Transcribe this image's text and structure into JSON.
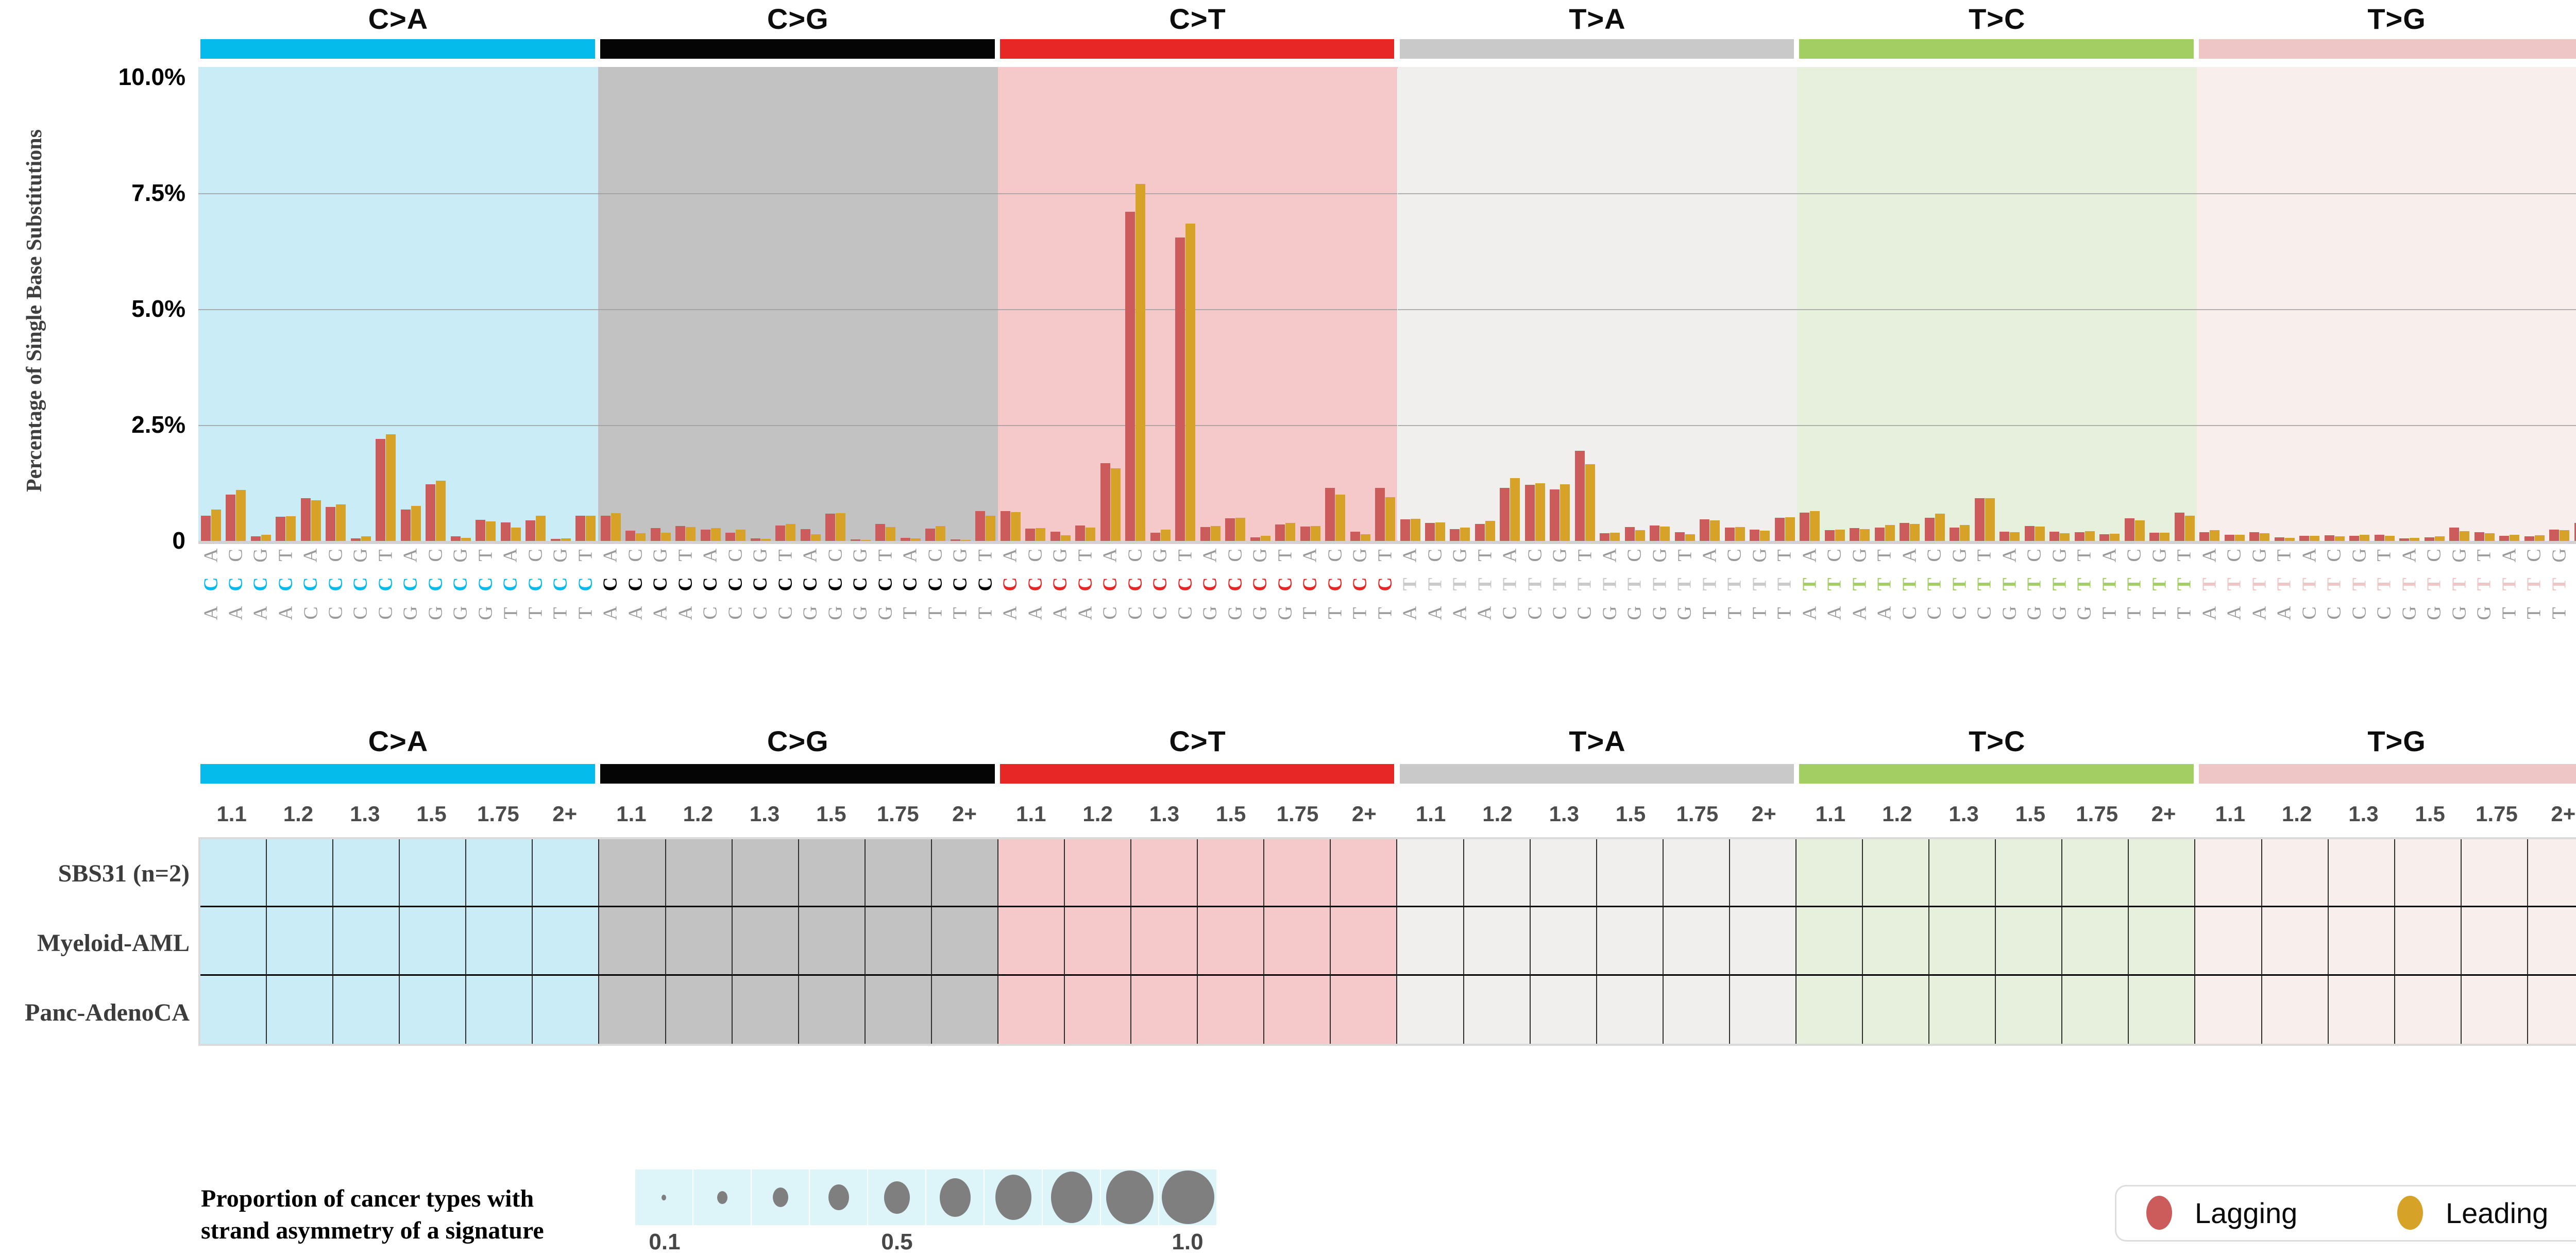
{
  "page": {
    "signature_title": "SBS31"
  },
  "axes": {
    "ylabel": "Percentage of Single Base Substitutions",
    "ytick_labels": [
      "10.0%",
      "7.5%",
      "5.0%",
      "2.5%",
      "0"
    ],
    "ytick_values": [
      10.0,
      7.5,
      5.0,
      2.5,
      0
    ]
  },
  "top_legend": {
    "items": [
      {
        "label": "Lagging Strand",
        "color": "#CC5B5C"
      },
      {
        "label": "Leading Strand",
        "color": "#D7A228"
      }
    ]
  },
  "colors": {
    "lagging": "#CC5B5C",
    "leading": "#D7A228",
    "gridline": "#9a9a9a",
    "bubble_dot": "#7f7f7f",
    "bubble_bg": "#ddf4f9"
  },
  "chart_data": {
    "type": "bar",
    "title": "SBS31",
    "ylabel": "Percentage of Single Base Substitutions",
    "ylim": [
      0,
      10
    ],
    "grid": true,
    "legend_position": "upper right",
    "series_names": [
      "Lagging Strand",
      "Leading Strand"
    ],
    "groups": [
      {
        "substitution": "C>A",
        "color": "#04BBEC",
        "tint": "#C9ECF6",
        "mid_letter_color": "#04BBEC",
        "bars": [
          {
            "context": "ACA",
            "lagging": 0.55,
            "leading": 0.68
          },
          {
            "context": "ACC",
            "lagging": 1.0,
            "leading": 1.1
          },
          {
            "context": "ACG",
            "lagging": 0.1,
            "leading": 0.13
          },
          {
            "context": "ACT",
            "lagging": 0.52,
            "leading": 0.53
          },
          {
            "context": "CCA",
            "lagging": 0.92,
            "leading": 0.88
          },
          {
            "context": "CCC",
            "lagging": 0.73,
            "leading": 0.79
          },
          {
            "context": "CCG",
            "lagging": 0.06,
            "leading": 0.1
          },
          {
            "context": "CCT",
            "lagging": 2.2,
            "leading": 2.3
          },
          {
            "context": "GCA",
            "lagging": 0.68,
            "leading": 0.76
          },
          {
            "context": "GCC",
            "lagging": 1.22,
            "leading": 1.3
          },
          {
            "context": "GCG",
            "lagging": 0.1,
            "leading": 0.07
          },
          {
            "context": "GCT",
            "lagging": 0.46,
            "leading": 0.42
          },
          {
            "context": "TCA",
            "lagging": 0.4,
            "leading": 0.29
          },
          {
            "context": "TCC",
            "lagging": 0.45,
            "leading": 0.55
          },
          {
            "context": "TCG",
            "lagging": 0.05,
            "leading": 0.06
          },
          {
            "context": "TCT",
            "lagging": 0.55,
            "leading": 0.54
          }
        ]
      },
      {
        "substitution": "C>G",
        "color": "#050505",
        "tint": "#C2C2C2",
        "mid_letter_color": "#050505",
        "bars": [
          {
            "context": "ACA",
            "lagging": 0.55,
            "leading": 0.6
          },
          {
            "context": "ACC",
            "lagging": 0.22,
            "leading": 0.17
          },
          {
            "context": "ACG",
            "lagging": 0.28,
            "leading": 0.18
          },
          {
            "context": "ACT",
            "lagging": 0.32,
            "leading": 0.3
          },
          {
            "context": "CCA",
            "lagging": 0.25,
            "leading": 0.28
          },
          {
            "context": "CCC",
            "lagging": 0.18,
            "leading": 0.24
          },
          {
            "context": "CCG",
            "lagging": 0.06,
            "leading": 0.05
          },
          {
            "context": "CCT",
            "lagging": 0.33,
            "leading": 0.37
          },
          {
            "context": "GCA",
            "lagging": 0.26,
            "leading": 0.14
          },
          {
            "context": "GCC",
            "lagging": 0.59,
            "leading": 0.6
          },
          {
            "context": "GCG",
            "lagging": 0.03,
            "leading": 0.02
          },
          {
            "context": "GCT",
            "lagging": 0.37,
            "leading": 0.3
          },
          {
            "context": "TCA",
            "lagging": 0.07,
            "leading": 0.06
          },
          {
            "context": "TCC",
            "lagging": 0.27,
            "leading": 0.32
          },
          {
            "context": "TCG",
            "lagging": 0.03,
            "leading": 0.02
          },
          {
            "context": "TCT",
            "lagging": 0.64,
            "leading": 0.54
          }
        ]
      },
      {
        "substitution": "C>T",
        "color": "#E62725",
        "tint": "#F5C9C9",
        "mid_letter_color": "#E62725",
        "bars": [
          {
            "context": "ACA",
            "lagging": 0.64,
            "leading": 0.62
          },
          {
            "context": "ACC",
            "lagging": 0.27,
            "leading": 0.28
          },
          {
            "context": "ACG",
            "lagging": 0.2,
            "leading": 0.12
          },
          {
            "context": "ACT",
            "lagging": 0.33,
            "leading": 0.29
          },
          {
            "context": "CCA",
            "lagging": 1.68,
            "leading": 1.57
          },
          {
            "context": "CCC",
            "lagging": 7.1,
            "leading": 7.7
          },
          {
            "context": "CCG",
            "lagging": 0.18,
            "leading": 0.24
          },
          {
            "context": "CCT",
            "lagging": 6.55,
            "leading": 6.85
          },
          {
            "context": "GCA",
            "lagging": 0.3,
            "leading": 0.32
          },
          {
            "context": "GCC",
            "lagging": 0.49,
            "leading": 0.5
          },
          {
            "context": "GCG",
            "lagging": 0.08,
            "leading": 0.11
          },
          {
            "context": "GCT",
            "lagging": 0.36,
            "leading": 0.39
          },
          {
            "context": "TCA",
            "lagging": 0.31,
            "leading": 0.32
          },
          {
            "context": "TCC",
            "lagging": 1.15,
            "leading": 1.0
          },
          {
            "context": "TCG",
            "lagging": 0.2,
            "leading": 0.14
          },
          {
            "context": "TCT",
            "lagging": 1.15,
            "leading": 0.95
          }
        ]
      },
      {
        "substitution": "T>A",
        "color": "#C9C9C9",
        "tint": "#F0EFEE",
        "mid_letter_color": "#C9C9C9",
        "bars": [
          {
            "context": "ATA",
            "lagging": 0.47,
            "leading": 0.48
          },
          {
            "context": "ATC",
            "lagging": 0.39,
            "leading": 0.4
          },
          {
            "context": "ATG",
            "lagging": 0.26,
            "leading": 0.29
          },
          {
            "context": "ATT",
            "lagging": 0.37,
            "leading": 0.43
          },
          {
            "context": "CTA",
            "lagging": 1.15,
            "leading": 1.36
          },
          {
            "context": "CTC",
            "lagging": 1.21,
            "leading": 1.24
          },
          {
            "context": "CTG",
            "lagging": 1.11,
            "leading": 1.22
          },
          {
            "context": "CTT",
            "lagging": 1.94,
            "leading": 1.66
          },
          {
            "context": "GTA",
            "lagging": 0.17,
            "leading": 0.18
          },
          {
            "context": "GTC",
            "lagging": 0.3,
            "leading": 0.23
          },
          {
            "context": "GTG",
            "lagging": 0.33,
            "leading": 0.31
          },
          {
            "context": "GTT",
            "lagging": 0.19,
            "leading": 0.15
          },
          {
            "context": "TTA",
            "lagging": 0.47,
            "leading": 0.44
          },
          {
            "context": "TTC",
            "lagging": 0.29,
            "leading": 0.3
          },
          {
            "context": "TTG",
            "lagging": 0.25,
            "leading": 0.22
          },
          {
            "context": "TTT",
            "lagging": 0.5,
            "leading": 0.51
          }
        ]
      },
      {
        "substitution": "T>C",
        "color": "#A2CE63",
        "tint": "#E6F0DC",
        "mid_letter_color": "#A2CE63",
        "bars": [
          {
            "context": "ATA",
            "lagging": 0.61,
            "leading": 0.64
          },
          {
            "context": "ATC",
            "lagging": 0.23,
            "leading": 0.25
          },
          {
            "context": "ATG",
            "lagging": 0.28,
            "leading": 0.26
          },
          {
            "context": "ATT",
            "lagging": 0.29,
            "leading": 0.35
          },
          {
            "context": "CTA",
            "lagging": 0.39,
            "leading": 0.37
          },
          {
            "context": "CTC",
            "lagging": 0.5,
            "leading": 0.59
          },
          {
            "context": "CTG",
            "lagging": 0.29,
            "leading": 0.35
          },
          {
            "context": "CTT",
            "lagging": 0.92,
            "leading": 0.92
          },
          {
            "context": "GTA",
            "lagging": 0.2,
            "leading": 0.19
          },
          {
            "context": "GTC",
            "lagging": 0.32,
            "leading": 0.31
          },
          {
            "context": "GTG",
            "lagging": 0.2,
            "leading": 0.17
          },
          {
            "context": "GTT",
            "lagging": 0.19,
            "leading": 0.21
          },
          {
            "context": "TTA",
            "lagging": 0.14,
            "leading": 0.16
          },
          {
            "context": "TTC",
            "lagging": 0.49,
            "leading": 0.45
          },
          {
            "context": "TTG",
            "lagging": 0.18,
            "leading": 0.18
          },
          {
            "context": "TTT",
            "lagging": 0.61,
            "leading": 0.54
          }
        ]
      },
      {
        "substitution": "T>G",
        "color": "#EEC6C5",
        "tint": "#F8EEEC",
        "mid_letter_color": "#EEC6C5",
        "bars": [
          {
            "context": "ATA",
            "lagging": 0.19,
            "leading": 0.23
          },
          {
            "context": "ATC",
            "lagging": 0.13,
            "leading": 0.13
          },
          {
            "context": "ATG",
            "lagging": 0.19,
            "leading": 0.17
          },
          {
            "context": "ATT",
            "lagging": 0.08,
            "leading": 0.07
          },
          {
            "context": "CTA",
            "lagging": 0.11,
            "leading": 0.11
          },
          {
            "context": "CTC",
            "lagging": 0.12,
            "leading": 0.1
          },
          {
            "context": "CTG",
            "lagging": 0.11,
            "leading": 0.13
          },
          {
            "context": "CTT",
            "lagging": 0.13,
            "leading": 0.11
          },
          {
            "context": "GTA",
            "lagging": 0.06,
            "leading": 0.07
          },
          {
            "context": "GTC",
            "lagging": 0.08,
            "leading": 0.1
          },
          {
            "context": "GTG",
            "lagging": 0.29,
            "leading": 0.21
          },
          {
            "context": "GTT",
            "lagging": 0.19,
            "leading": 0.17
          },
          {
            "context": "TTA",
            "lagging": 0.11,
            "leading": 0.13
          },
          {
            "context": "TTC",
            "lagging": 0.1,
            "leading": 0.12
          },
          {
            "context": "TTG",
            "lagging": 0.24,
            "leading": 0.23
          },
          {
            "context": "TTT",
            "lagging": 0.39,
            "leading": 0.39
          }
        ]
      }
    ]
  },
  "table": {
    "ratio_headers": [
      "1.1",
      "1.2",
      "1.3",
      "1.5",
      "1.75",
      "2+"
    ],
    "row_labels": [
      "SBS31 (n=2)",
      "Myeloid-AML",
      "Panc-AdenoCA"
    ],
    "cells": []
  },
  "bubble_legend": {
    "line1": "Proportion of cancer types with",
    "line2": "strand asymmetry of a signature",
    "tick_labels": [
      "0.1",
      "0.5",
      "1.0"
    ],
    "tick_values": [
      0.1,
      0.5,
      1.0
    ],
    "dot_sizes": [
      9,
      20,
      30,
      40,
      50,
      60,
      70,
      80,
      92,
      102
    ]
  },
  "strand_legend": {
    "lagging": "Lagging",
    "leading": "Leading"
  }
}
